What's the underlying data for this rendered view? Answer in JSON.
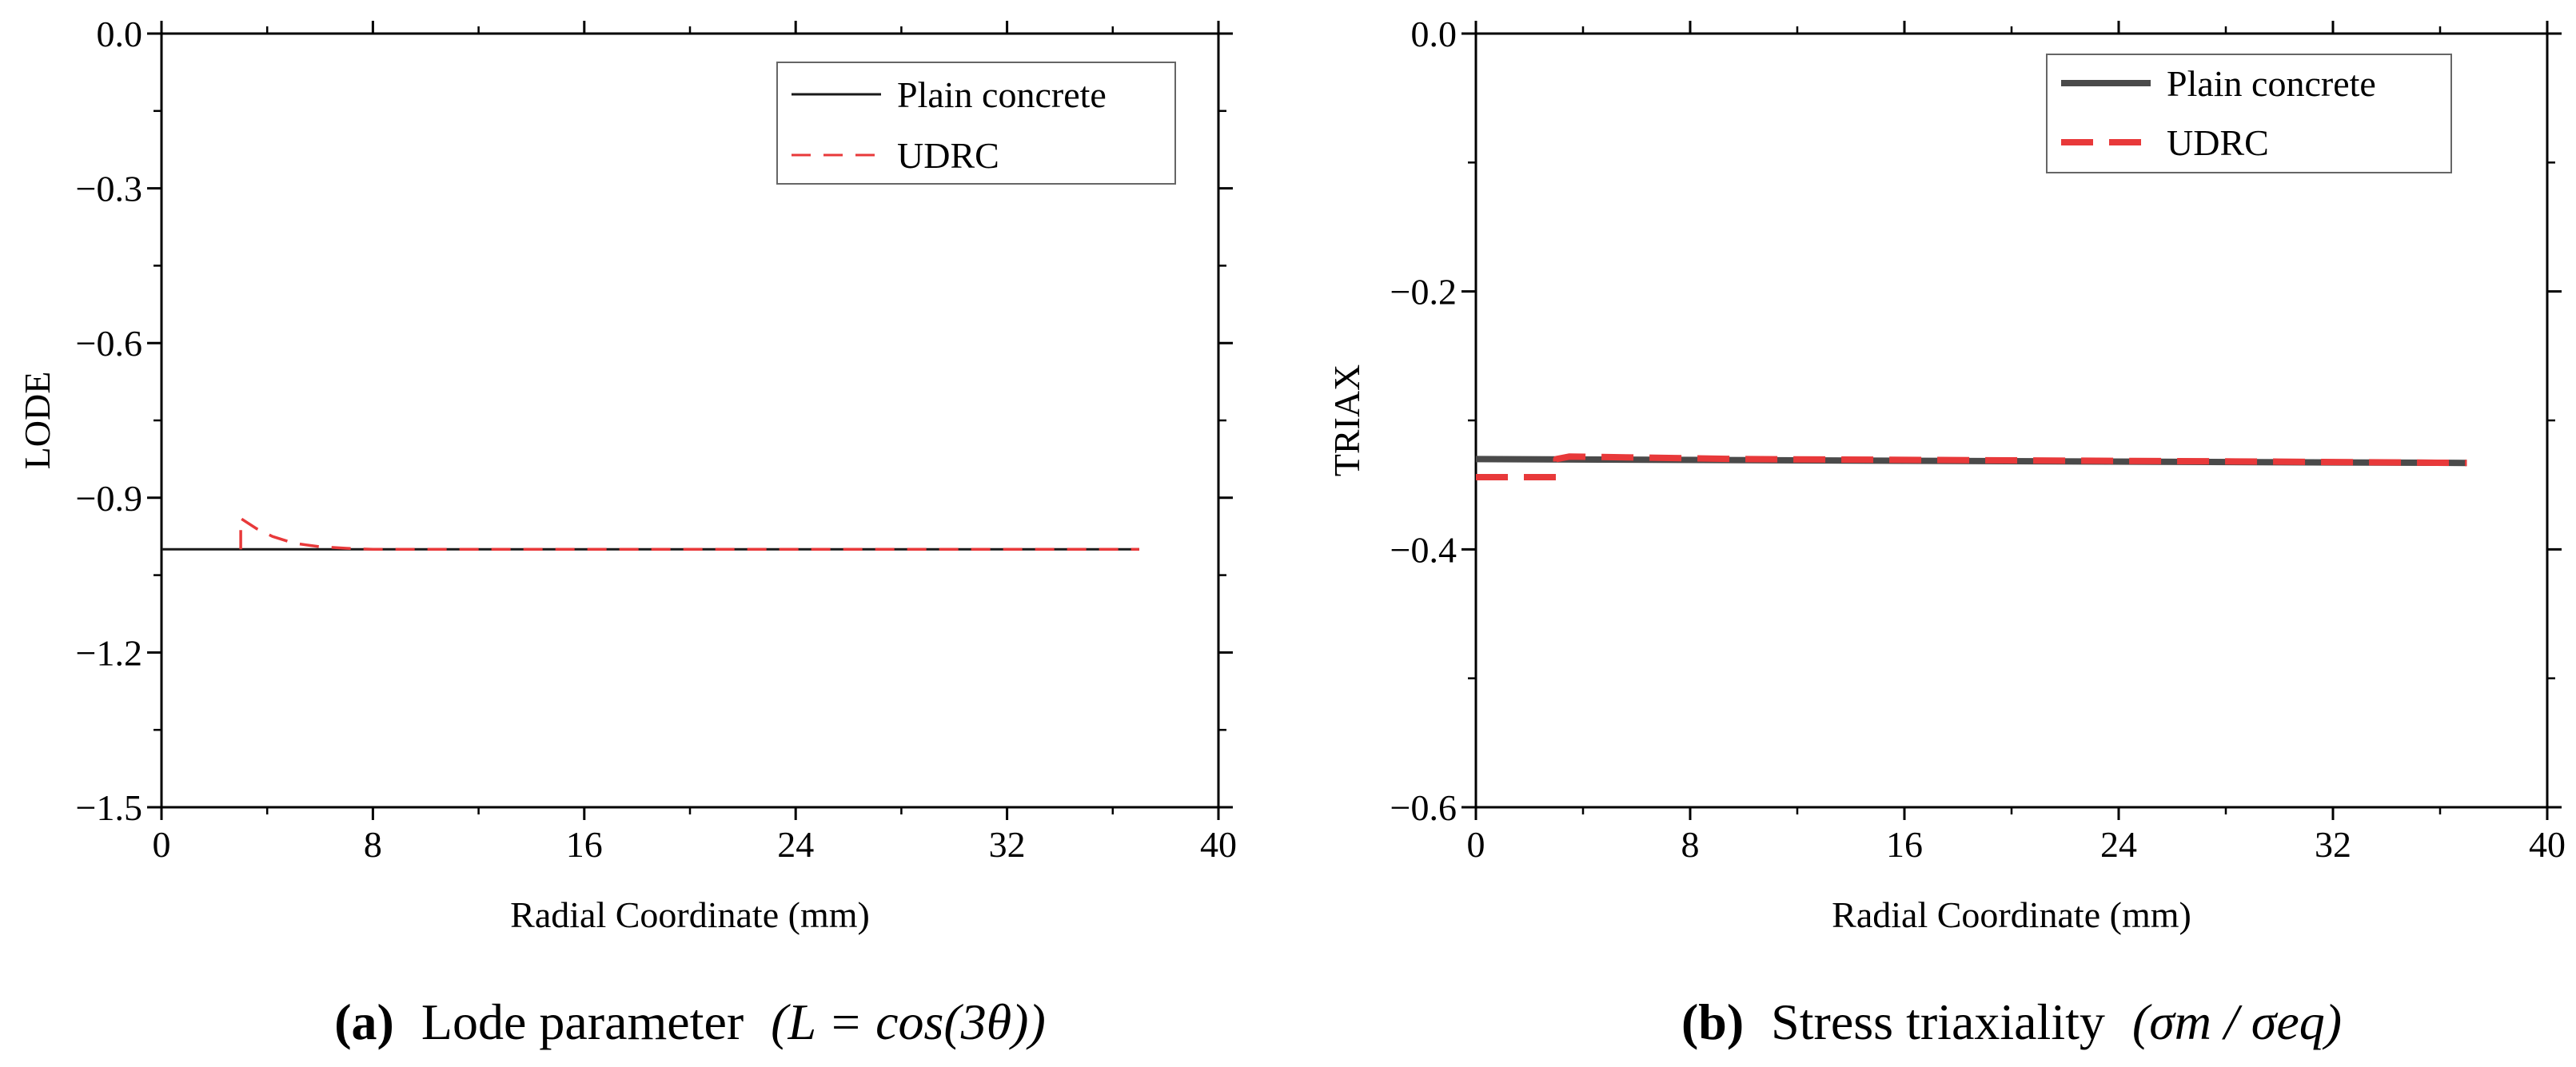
{
  "chart_data": [
    {
      "type": "line",
      "id": "a",
      "xlabel": "Radial Coordinate (mm)",
      "ylabel": "LODE",
      "xlim": [
        0,
        40
      ],
      "ylim": [
        -1.5,
        0
      ],
      "xticks": [
        0,
        8,
        16,
        24,
        32,
        40
      ],
      "xtick_labels": [
        "0",
        "8",
        "16",
        "24",
        "32",
        "40"
      ],
      "yticks": [
        0,
        -0.3,
        -0.6,
        -0.9,
        -1.2,
        -1.5
      ],
      "ytick_labels": [
        "0.0",
        "−0.3",
        "−0.6",
        "−0.9",
        "−1.2",
        "−1.5"
      ],
      "grid": false,
      "legend_position": "top-right",
      "series": [
        {
          "name": "Plain concrete",
          "color": "#1a1a1a",
          "style": "solid",
          "x": [
            0,
            37
          ],
          "y": [
            -1.0,
            -1.0
          ]
        },
        {
          "name": "UDRC",
          "color": "#e8393a",
          "style": "dashed",
          "x": [
            3,
            3,
            3.6,
            4.2,
            5,
            6,
            7,
            8,
            10,
            16,
            24,
            32,
            37
          ],
          "y": [
            -1.0,
            -0.94,
            -0.96,
            -0.975,
            -0.988,
            -0.995,
            -0.998,
            -1.0,
            -1.0,
            -1.0,
            -1.0,
            -1.0,
            -1.0
          ]
        }
      ],
      "caption_label": "(a)",
      "caption_text": "Lode parameter",
      "caption_formula": "(L = cos(3θ))"
    },
    {
      "type": "line",
      "id": "b",
      "xlabel": "Radial Coordinate (mm)",
      "ylabel": "TRIAX",
      "xlim": [
        0,
        40
      ],
      "ylim": [
        -0.6,
        0
      ],
      "xticks": [
        0,
        8,
        16,
        24,
        32,
        40
      ],
      "xtick_labels": [
        "0",
        "8",
        "16",
        "24",
        "32",
        "40"
      ],
      "yticks": [
        0,
        -0.2,
        -0.4,
        -0.6
      ],
      "ytick_labels": [
        "0.0",
        "−0.2",
        "−0.4",
        "−0.6"
      ],
      "grid": false,
      "legend_position": "top-right",
      "series": [
        {
          "name": "Plain concrete",
          "color": "#4a4a4a",
          "style": "solid",
          "x": [
            0,
            37
          ],
          "y": [
            -0.33,
            -0.333
          ]
        },
        {
          "name": "UDRC",
          "color": "#e8393a",
          "style": "dashed",
          "x": [
            0,
            3,
            3,
            3.5,
            10,
            20,
            30,
            37
          ],
          "y": [
            -0.344,
            -0.344,
            -0.33,
            -0.328,
            -0.33,
            -0.331,
            -0.332,
            -0.333
          ]
        }
      ],
      "caption_label": "(b)",
      "caption_text": "Stress triaxiality",
      "caption_formula": "(σm / σeq)"
    }
  ]
}
